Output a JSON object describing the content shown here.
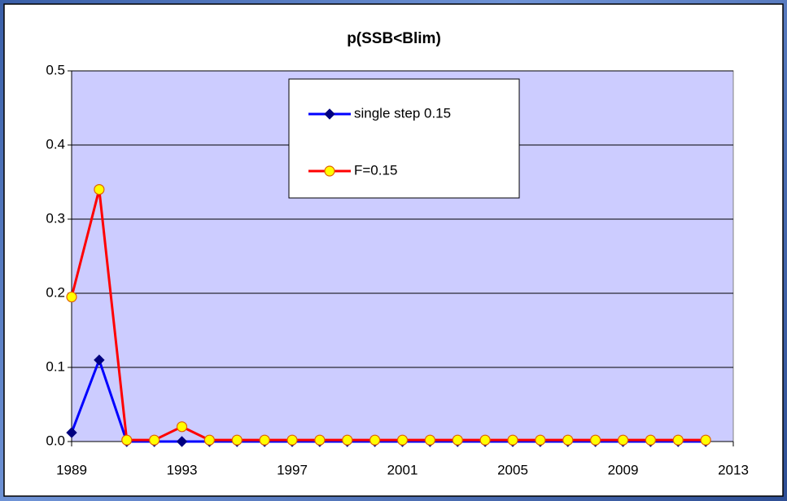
{
  "chart_data": {
    "type": "line",
    "title": "p(SSB<Blim)",
    "x": [
      1989,
      1990,
      1991,
      1992,
      1993,
      1994,
      1995,
      1996,
      1997,
      1998,
      1999,
      2000,
      2001,
      2002,
      2003,
      2004,
      2005,
      2006,
      2007,
      2008,
      2009,
      2010,
      2011,
      2012
    ],
    "series": [
      {
        "name": "single step 0.15",
        "color": "#0000ff",
        "marker": "diamond",
        "marker_color": "#000080",
        "values": [
          0.012,
          0.11,
          0,
          0,
          0,
          0,
          0,
          0,
          0,
          0,
          0,
          0,
          0,
          0,
          0,
          0,
          0,
          0,
          0,
          0,
          0,
          0,
          0,
          0
        ]
      },
      {
        "name": "F=0.15",
        "color": "#ff0000",
        "marker": "circle",
        "marker_color": "#ffff00",
        "values": [
          0.195,
          0.34,
          0.002,
          0.002,
          0.02,
          0.002,
          0.002,
          0.002,
          0.002,
          0.002,
          0.002,
          0.002,
          0.002,
          0.002,
          0.002,
          0.002,
          0.002,
          0.002,
          0.002,
          0.002,
          0.002,
          0.002,
          0.002,
          0.002
        ]
      }
    ],
    "xlim": [
      1989,
      2013
    ],
    "xticks": [
      1989,
      1993,
      1997,
      2001,
      2005,
      2009,
      2013
    ],
    "ylim": [
      0,
      0.5
    ],
    "yticks": [
      {
        "value": 0,
        "label": "0.0"
      },
      0.1,
      0.2,
      0.3,
      0.4,
      0.5
    ],
    "grid": true,
    "legend": "top"
  }
}
